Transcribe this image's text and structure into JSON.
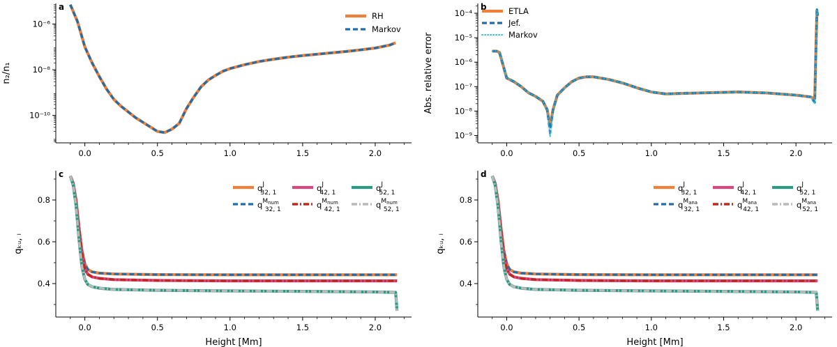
{
  "chart_data": [
    {
      "panel": "a",
      "type": "line",
      "yscale": "log",
      "xlabel": "",
      "ylabel": "n₂/n₁",
      "xlim": [
        -0.2,
        2.25
      ],
      "ylim_log10": [
        -11.2,
        -5.1
      ],
      "xticks": [
        {
          "v": 0.0,
          "label": "0.0"
        },
        {
          "v": 0.5,
          "label": "0.5"
        },
        {
          "v": 1.0,
          "label": "1.0"
        },
        {
          "v": 1.5,
          "label": "1.5"
        },
        {
          "v": 2.0,
          "label": "2.0"
        }
      ],
      "yticks": [
        {
          "v": -6,
          "label": "10⁻⁶"
        },
        {
          "v": -8,
          "label": "10⁻⁸"
        },
        {
          "v": -10,
          "label": "10⁻¹⁰"
        }
      ],
      "legend": {
        "position": "top-right"
      },
      "x": [
        -0.1,
        -0.05,
        0.0,
        0.05,
        0.1,
        0.15,
        0.2,
        0.25,
        0.3,
        0.35,
        0.4,
        0.45,
        0.5,
        0.55,
        0.6,
        0.65,
        0.7,
        0.75,
        0.8,
        0.85,
        0.9,
        0.95,
        1.0,
        1.1,
        1.2,
        1.3,
        1.4,
        1.5,
        1.6,
        1.7,
        1.8,
        1.9,
        2.0,
        2.1,
        2.14
      ],
      "series": [
        {
          "name": "RH",
          "style": "solid",
          "color": "#f07f3a",
          "values": [
            -5.15,
            -5.9,
            -7.0,
            -7.7,
            -8.3,
            -8.85,
            -9.3,
            -9.6,
            -9.85,
            -10.1,
            -10.3,
            -10.5,
            -10.7,
            -10.75,
            -10.6,
            -10.35,
            -9.7,
            -9.2,
            -8.75,
            -8.45,
            -8.25,
            -8.07,
            -7.95,
            -7.78,
            -7.64,
            -7.54,
            -7.45,
            -7.38,
            -7.32,
            -7.26,
            -7.2,
            -7.13,
            -7.05,
            -6.92,
            -6.82
          ]
        },
        {
          "name": "Markov",
          "style": "dashed",
          "color": "#1f6ea8",
          "values": [
            -5.15,
            -5.9,
            -7.0,
            -7.7,
            -8.3,
            -8.85,
            -9.3,
            -9.6,
            -9.85,
            -10.1,
            -10.3,
            -10.5,
            -10.7,
            -10.75,
            -10.6,
            -10.35,
            -9.7,
            -9.2,
            -8.75,
            -8.45,
            -8.25,
            -8.07,
            -7.95,
            -7.78,
            -7.64,
            -7.54,
            -7.45,
            -7.38,
            -7.32,
            -7.26,
            -7.2,
            -7.13,
            -7.05,
            -6.92,
            -6.82
          ]
        }
      ]
    },
    {
      "panel": "b",
      "type": "line",
      "yscale": "log",
      "xlabel": "",
      "ylabel": "Abs. relative error",
      "xlim": [
        -0.2,
        2.25
      ],
      "ylim_log10": [
        -9.3,
        -3.6
      ],
      "xticks": [
        {
          "v": 0.0,
          "label": "0.0"
        },
        {
          "v": 0.5,
          "label": "0.5"
        },
        {
          "v": 1.0,
          "label": "1.0"
        },
        {
          "v": 1.5,
          "label": "1.5"
        },
        {
          "v": 2.0,
          "label": "2.0"
        }
      ],
      "yticks": [
        {
          "v": -4,
          "label": "10⁻⁴"
        },
        {
          "v": -5,
          "label": "10⁻⁵"
        },
        {
          "v": -6,
          "label": "10⁻⁶"
        },
        {
          "v": -7,
          "label": "10⁻⁷"
        },
        {
          "v": -8,
          "label": "10⁻⁸"
        },
        {
          "v": -9,
          "label": "10⁻⁹"
        }
      ],
      "legend": {
        "position": "top-left"
      },
      "x": [
        -0.1,
        -0.07,
        -0.05,
        0.0,
        0.05,
        0.1,
        0.15,
        0.2,
        0.25,
        0.28,
        0.3,
        0.32,
        0.35,
        0.4,
        0.45,
        0.5,
        0.55,
        0.6,
        0.7,
        0.8,
        0.9,
        1.0,
        1.1,
        1.2,
        1.4,
        1.6,
        1.8,
        2.0,
        2.1,
        2.13,
        2.14,
        2.145,
        2.15
      ],
      "series": [
        {
          "name": "ETLA",
          "style": "solid",
          "color": "#f07f3a",
          "values": [
            -5.55,
            -5.55,
            -5.6,
            -6.65,
            -6.8,
            -7.0,
            -7.25,
            -7.4,
            -7.6,
            -7.95,
            -8.6,
            -7.95,
            -7.35,
            -7.05,
            -6.8,
            -6.65,
            -6.6,
            -6.6,
            -6.7,
            -6.85,
            -7.05,
            -7.22,
            -7.3,
            -7.28,
            -7.25,
            -7.22,
            -7.26,
            -7.35,
            -7.42,
            -7.5,
            -5.0,
            -3.9,
            -4.1
          ]
        },
        {
          "name": "Jef.",
          "style": "dashed",
          "color": "#1f6ea8",
          "values": [
            -5.55,
            -5.55,
            -5.6,
            -6.65,
            -6.8,
            -7.0,
            -7.25,
            -7.4,
            -7.6,
            -7.95,
            -8.9,
            -7.95,
            -7.35,
            -7.05,
            -6.8,
            -6.65,
            -6.6,
            -6.6,
            -6.7,
            -6.85,
            -7.05,
            -7.22,
            -7.3,
            -7.28,
            -7.25,
            -7.22,
            -7.26,
            -7.35,
            -7.42,
            -7.65,
            -5.0,
            -3.85,
            -4.1
          ]
        },
        {
          "name": "Markov",
          "style": "dotted",
          "color": "#28b5d3",
          "values": [
            -5.55,
            -5.55,
            -5.6,
            -6.65,
            -6.8,
            -7.0,
            -7.25,
            -7.4,
            -7.6,
            -7.95,
            -9.05,
            -7.95,
            -7.35,
            -7.05,
            -6.8,
            -6.65,
            -6.6,
            -6.6,
            -6.7,
            -6.85,
            -7.05,
            -7.22,
            -7.3,
            -7.28,
            -7.25,
            -7.22,
            -7.26,
            -7.35,
            -7.42,
            -7.7,
            -5.0,
            -3.85,
            -4.1
          ]
        }
      ]
    },
    {
      "panel": "c",
      "type": "line",
      "yscale": "linear",
      "xlabel": "Height [Mm]",
      "ylabel": "qₖᵤ, ₗ",
      "xlim": [
        -0.2,
        2.25
      ],
      "ylim": [
        0.24,
        0.94
      ],
      "xticks": [
        {
          "v": 0.0,
          "label": "0.0"
        },
        {
          "v": 0.5,
          "label": "0.5"
        },
        {
          "v": 1.0,
          "label": "1.0"
        },
        {
          "v": 1.5,
          "label": "1.5"
        },
        {
          "v": 2.0,
          "label": "2.0"
        }
      ],
      "yticks": [
        {
          "v": 0.4,
          "label": "0.4"
        },
        {
          "v": 0.6,
          "label": "0.6"
        },
        {
          "v": 0.8,
          "label": "0.8"
        }
      ],
      "legend": {
        "position": "top-right",
        "columns": 3
      },
      "x": [
        -0.1,
        -0.08,
        -0.06,
        -0.04,
        -0.02,
        0.0,
        0.02,
        0.05,
        0.1,
        0.2,
        0.5,
        1.0,
        1.5,
        2.0,
        2.14,
        2.145,
        2.15
      ],
      "series": [
        {
          "name": "q_{32,1}^{J}",
          "base": "q",
          "sup": "J",
          "sub": "32, 1",
          "style": "solid",
          "color": "#f07f3a",
          "values": [
            0.915,
            0.88,
            0.8,
            0.67,
            0.56,
            0.495,
            0.468,
            0.456,
            0.45,
            0.446,
            0.443,
            0.442,
            0.442,
            0.442,
            0.442,
            0.442,
            0.442
          ]
        },
        {
          "name": "q_{32,1}^{M_num}",
          "base": "q",
          "sup": "M",
          "supsub": "num",
          "sub": "32, 1",
          "style": "dashed",
          "color": "#1f6ea8",
          "values": [
            0.915,
            0.88,
            0.8,
            0.67,
            0.56,
            0.495,
            0.468,
            0.456,
            0.45,
            0.446,
            0.443,
            0.442,
            0.442,
            0.442,
            0.442,
            0.442,
            0.442
          ]
        },
        {
          "name": "q_{42,1}^{J}",
          "base": "q",
          "sup": "J",
          "sub": "42, 1",
          "style": "solid",
          "color": "#d9477f",
          "values": [
            0.915,
            0.88,
            0.79,
            0.66,
            0.54,
            0.47,
            0.445,
            0.432,
            0.425,
            0.419,
            0.415,
            0.413,
            0.413,
            0.413,
            0.413,
            0.413,
            0.413
          ]
        },
        {
          "name": "q_{42,1}^{M_num}",
          "base": "q",
          "sup": "M",
          "supsub": "num",
          "sub": "42, 1",
          "style": "dashdot",
          "color": "#c0271e",
          "values": [
            0.915,
            0.88,
            0.79,
            0.66,
            0.54,
            0.47,
            0.445,
            0.432,
            0.425,
            0.419,
            0.415,
            0.413,
            0.413,
            0.413,
            0.413,
            0.413,
            0.413
          ]
        },
        {
          "name": "q_{52,1}^{J}",
          "base": "q",
          "sup": "J",
          "sub": "52, 1",
          "style": "solid",
          "color": "#2a9a82",
          "values": [
            0.915,
            0.87,
            0.77,
            0.61,
            0.48,
            0.42,
            0.396,
            0.385,
            0.378,
            0.372,
            0.368,
            0.365,
            0.363,
            0.36,
            0.358,
            0.32,
            0.27
          ]
        },
        {
          "name": "q_{52,1}^{M_num}",
          "base": "q",
          "sup": "M",
          "supsub": "num",
          "sub": "52, 1",
          "style": "dashdot",
          "color": "#b9b9b9",
          "values": [
            0.915,
            0.87,
            0.77,
            0.61,
            0.48,
            0.42,
            0.396,
            0.385,
            0.378,
            0.372,
            0.368,
            0.365,
            0.363,
            0.36,
            0.358,
            0.32,
            0.27
          ]
        }
      ]
    },
    {
      "panel": "d",
      "type": "line",
      "yscale": "linear",
      "xlabel": "Height [Mm]",
      "ylabel": "qₖᵤ, ₗ",
      "xlim": [
        -0.2,
        2.25
      ],
      "ylim": [
        0.24,
        0.94
      ],
      "xticks": [
        {
          "v": 0.0,
          "label": "0.0"
        },
        {
          "v": 0.5,
          "label": "0.5"
        },
        {
          "v": 1.0,
          "label": "1.0"
        },
        {
          "v": 1.5,
          "label": "1.5"
        },
        {
          "v": 2.0,
          "label": "2.0"
        }
      ],
      "yticks": [
        {
          "v": 0.4,
          "label": "0.4"
        },
        {
          "v": 0.6,
          "label": "0.6"
        },
        {
          "v": 0.8,
          "label": "0.8"
        }
      ],
      "legend": {
        "position": "top-right",
        "columns": 3
      },
      "x": [
        -0.1,
        -0.08,
        -0.06,
        -0.04,
        -0.02,
        0.0,
        0.02,
        0.05,
        0.1,
        0.2,
        0.5,
        1.0,
        1.5,
        2.0,
        2.14,
        2.145,
        2.15
      ],
      "series": [
        {
          "name": "q_{32,1}^{J}",
          "base": "q",
          "sup": "J",
          "sub": "32, 1",
          "style": "solid",
          "color": "#f07f3a",
          "values": [
            0.915,
            0.88,
            0.8,
            0.67,
            0.56,
            0.495,
            0.468,
            0.456,
            0.45,
            0.446,
            0.443,
            0.442,
            0.442,
            0.442,
            0.442,
            0.442,
            0.442
          ]
        },
        {
          "name": "q_{32,1}^{M_ana}",
          "base": "q",
          "sup": "M",
          "supsub": "ana",
          "sub": "32, 1",
          "style": "dashed",
          "color": "#1f6ea8",
          "values": [
            0.915,
            0.88,
            0.8,
            0.67,
            0.56,
            0.495,
            0.468,
            0.456,
            0.45,
            0.446,
            0.443,
            0.442,
            0.442,
            0.442,
            0.442,
            0.442,
            0.442
          ]
        },
        {
          "name": "q_{42,1}^{J}",
          "base": "q",
          "sup": "J",
          "sub": "42, 1",
          "style": "solid",
          "color": "#d9477f",
          "values": [
            0.915,
            0.88,
            0.79,
            0.66,
            0.54,
            0.47,
            0.445,
            0.432,
            0.425,
            0.419,
            0.415,
            0.413,
            0.413,
            0.413,
            0.413,
            0.413,
            0.413
          ]
        },
        {
          "name": "q_{42,1}^{M_ana}",
          "base": "q",
          "sup": "M",
          "supsub": "ana",
          "sub": "42, 1",
          "style": "dashdot",
          "color": "#c0271e",
          "values": [
            0.915,
            0.88,
            0.79,
            0.66,
            0.54,
            0.47,
            0.445,
            0.432,
            0.425,
            0.419,
            0.415,
            0.413,
            0.413,
            0.413,
            0.413,
            0.413,
            0.413
          ]
        },
        {
          "name": "q_{52,1}^{J}",
          "base": "q",
          "sup": "J",
          "sub": "52, 1",
          "style": "solid",
          "color": "#2a9a82",
          "values": [
            0.915,
            0.87,
            0.77,
            0.61,
            0.48,
            0.42,
            0.396,
            0.385,
            0.378,
            0.372,
            0.368,
            0.365,
            0.363,
            0.36,
            0.358,
            0.32,
            0.27
          ]
        },
        {
          "name": "q_{52,1}^{M_ana}",
          "base": "q",
          "sup": "M",
          "supsub": "ana",
          "sub": "52, 1",
          "style": "dashdot",
          "color": "#b9b9b9",
          "values": [
            0.915,
            0.87,
            0.77,
            0.61,
            0.48,
            0.42,
            0.396,
            0.385,
            0.378,
            0.372,
            0.368,
            0.365,
            0.363,
            0.36,
            0.358,
            0.32,
            0.27
          ]
        }
      ]
    }
  ]
}
